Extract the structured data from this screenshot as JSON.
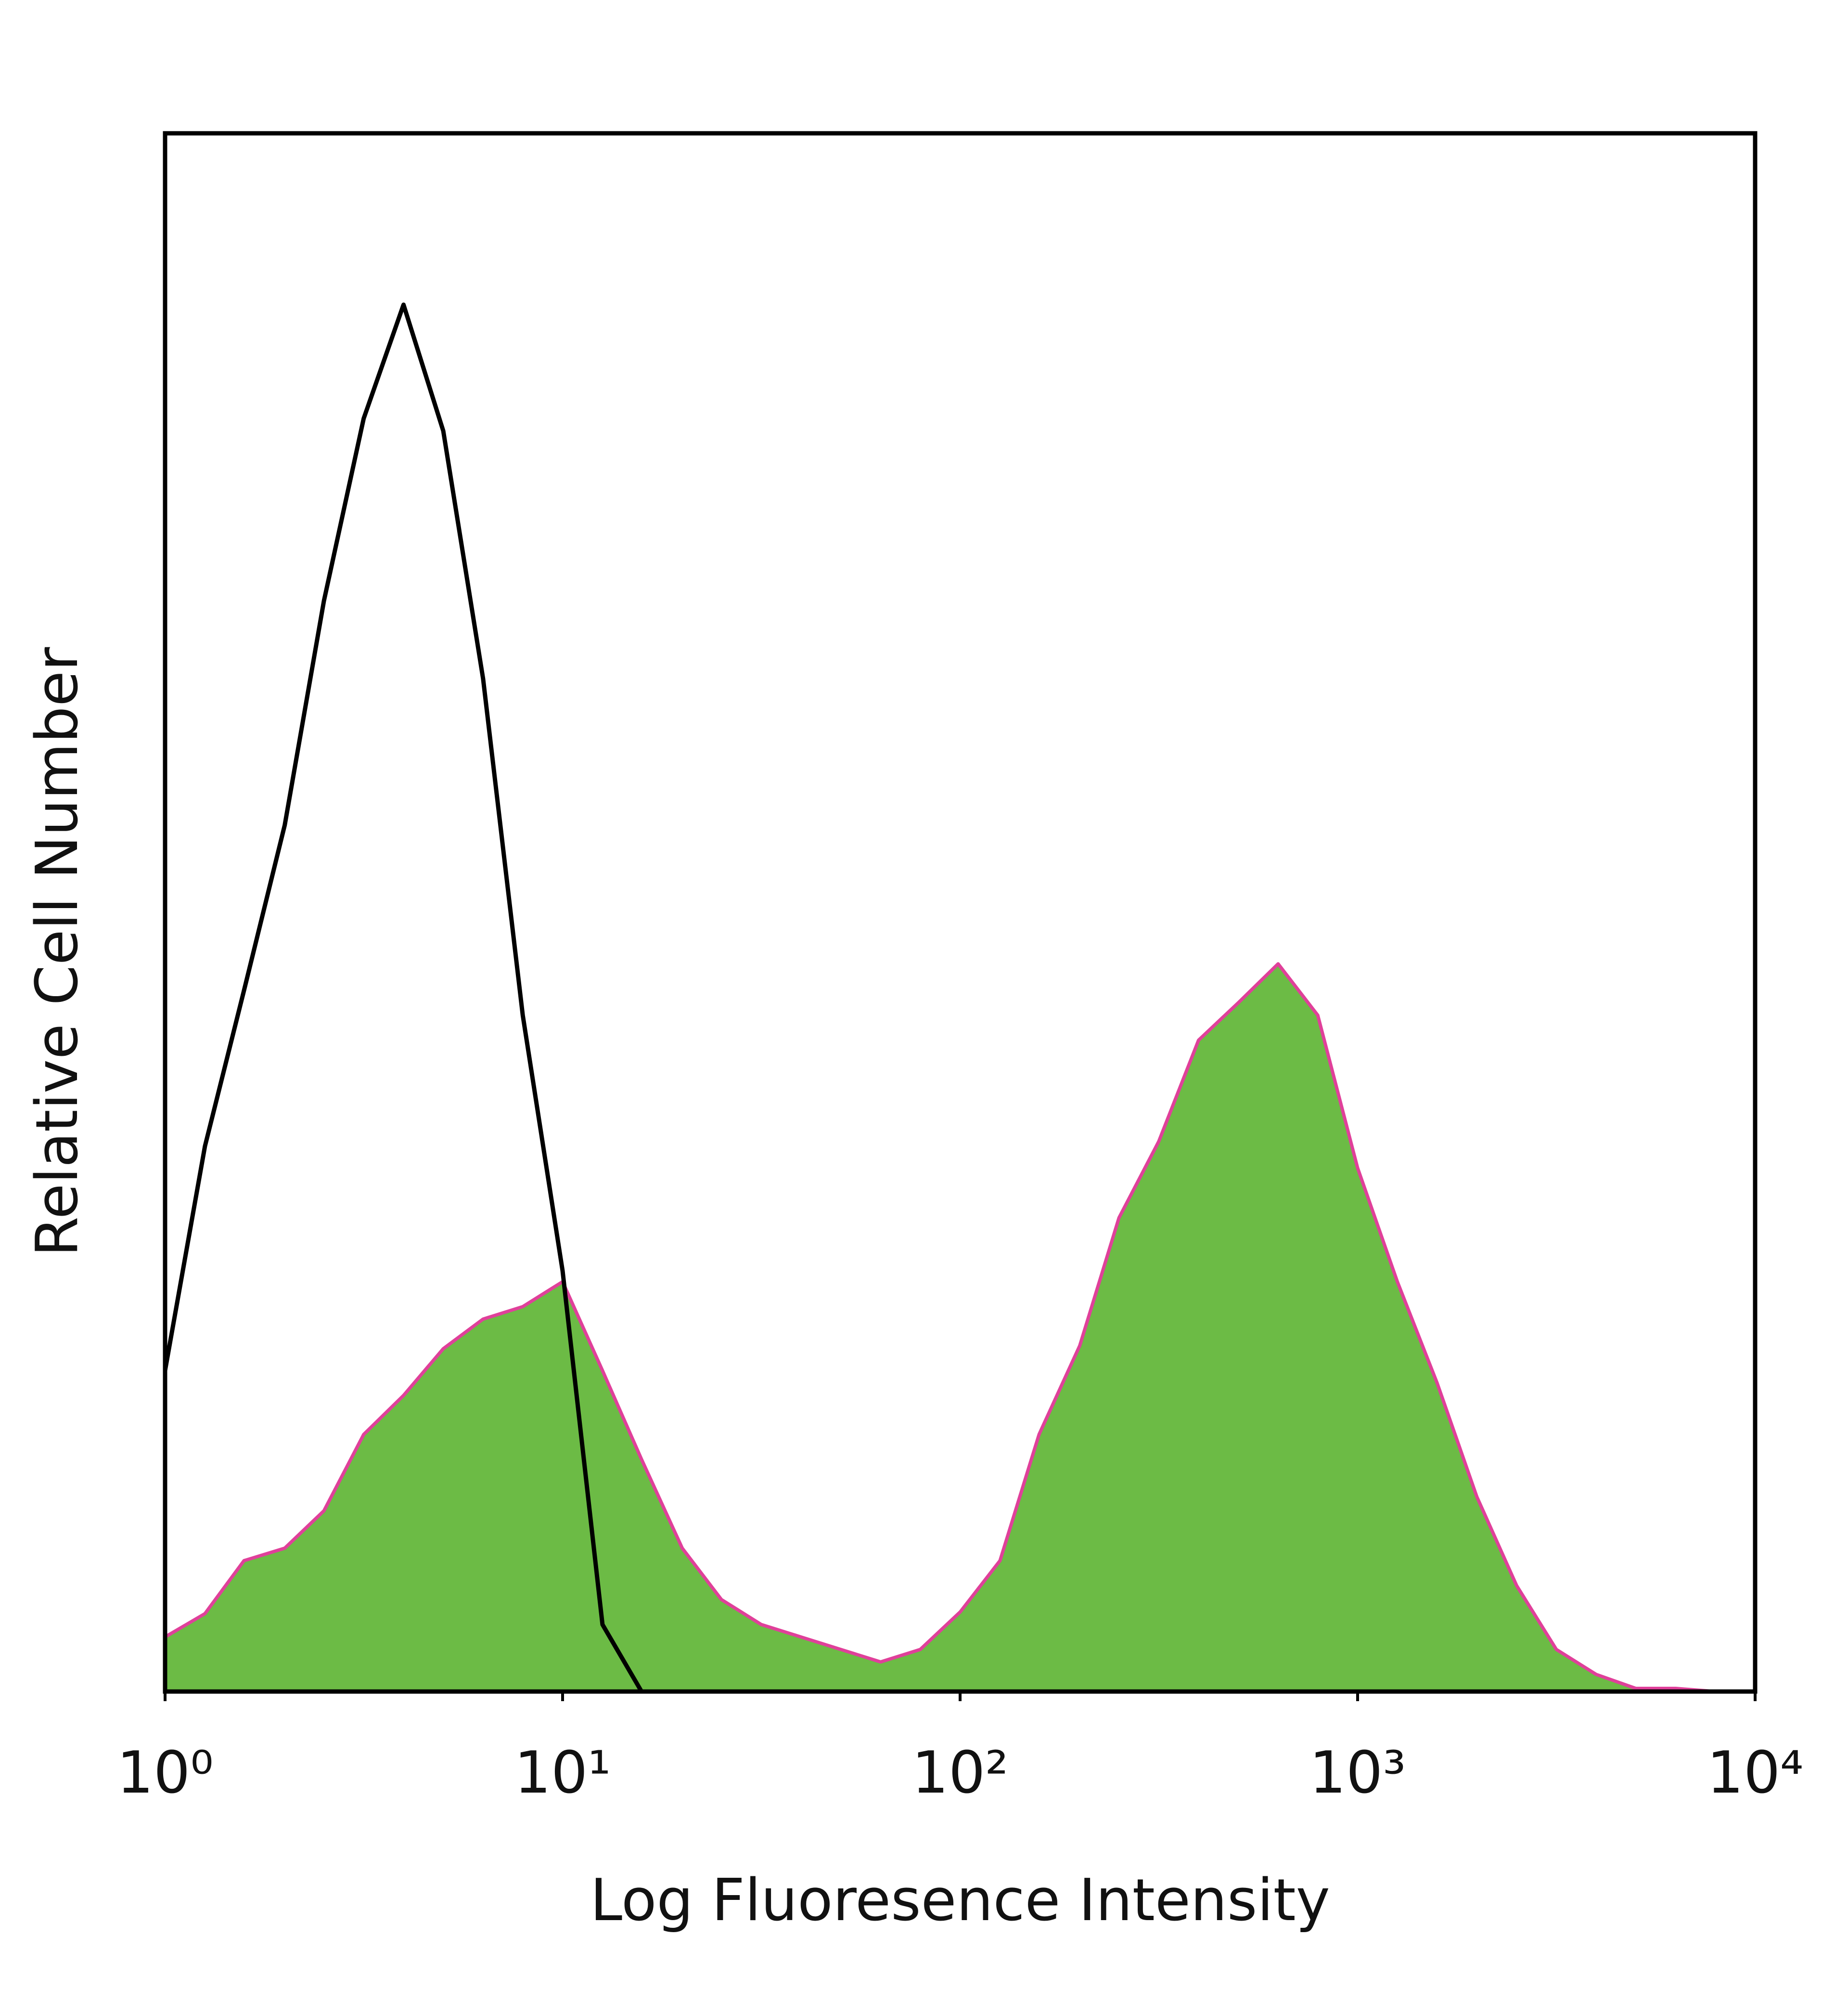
{
  "chart_data": {
    "type": "line",
    "xlabel": "Log Fluoresence Intensity",
    "ylabel": "Relative Cell Number",
    "xscale": "log",
    "xlim": [
      1,
      10000
    ],
    "ylim": [
      0,
      100
    ],
    "xticks": [
      {
        "value": 1,
        "label": "10⁰"
      },
      {
        "value": 10,
        "label": "10¹"
      },
      {
        "value": 100,
        "label": "10²"
      },
      {
        "value": 1000,
        "label": "10³"
      },
      {
        "value": 10000,
        "label": "10⁴"
      }
    ],
    "x": [
      1,
      1.26,
      1.58,
      2,
      2.51,
      3.16,
      3.98,
      5.01,
      6.31,
      7.94,
      10,
      12.6,
      15.8,
      20,
      25.1,
      31.6,
      39.8,
      50.1,
      63.1,
      79.4,
      100,
      126,
      158,
      200,
      251,
      316,
      398,
      501,
      631,
      794,
      1000,
      1259,
      1585,
      1995,
      2512,
      3162,
      3981,
      5012,
      6310,
      7943,
      10000
    ],
    "series": [
      {
        "color": "#6cbb45",
        "edge_color": "#e0409a",
        "filled": true,
        "values": [
          3.5,
          5,
          8.4,
          9.2,
          11.6,
          16.5,
          19,
          22,
          23.9,
          24.7,
          26.3,
          20.6,
          14.9,
          9.2,
          5.9,
          4.3,
          3.5,
          2.7,
          1.9,
          2.7,
          5.1,
          8.4,
          16.5,
          22.2,
          30.4,
          35.3,
          41.8,
          44.2,
          46.7,
          43.4,
          33.6,
          26.3,
          19.8,
          12.5,
          6.8,
          2.7,
          1.1,
          0.2,
          0.2,
          0,
          0
        ]
      },
      {
        "color": "#000000",
        "filled": false,
        "values": [
          20.6,
          35,
          45,
          55.6,
          70,
          81.7,
          89,
          80.9,
          65,
          43.4,
          27,
          4.3,
          0,
          null,
          null,
          null,
          null,
          null,
          null,
          null,
          null,
          null,
          null,
          null,
          null,
          null,
          null,
          null,
          null,
          null,
          null,
          null,
          null,
          null,
          null,
          null,
          null,
          null,
          null,
          null,
          null
        ]
      }
    ]
  }
}
